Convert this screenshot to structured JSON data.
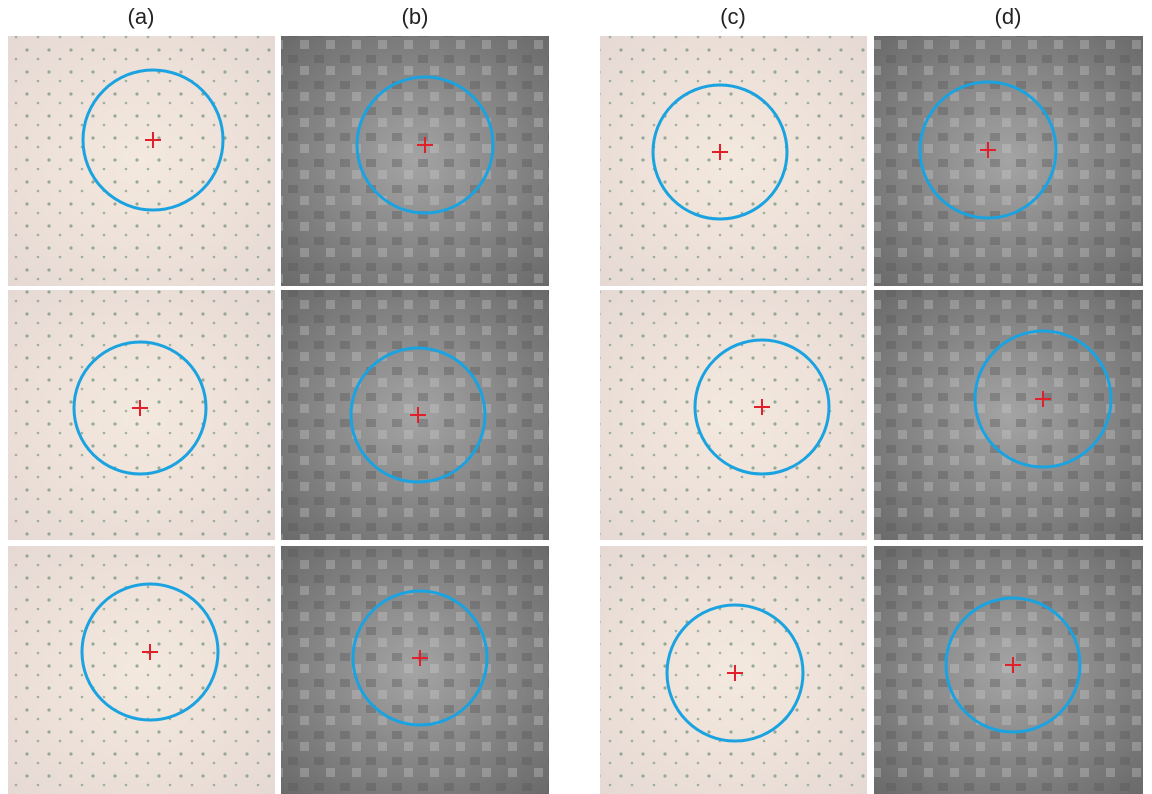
{
  "panel_labels": [
    "(a)",
    "(b)",
    "(c)",
    "(d)"
  ]
}
